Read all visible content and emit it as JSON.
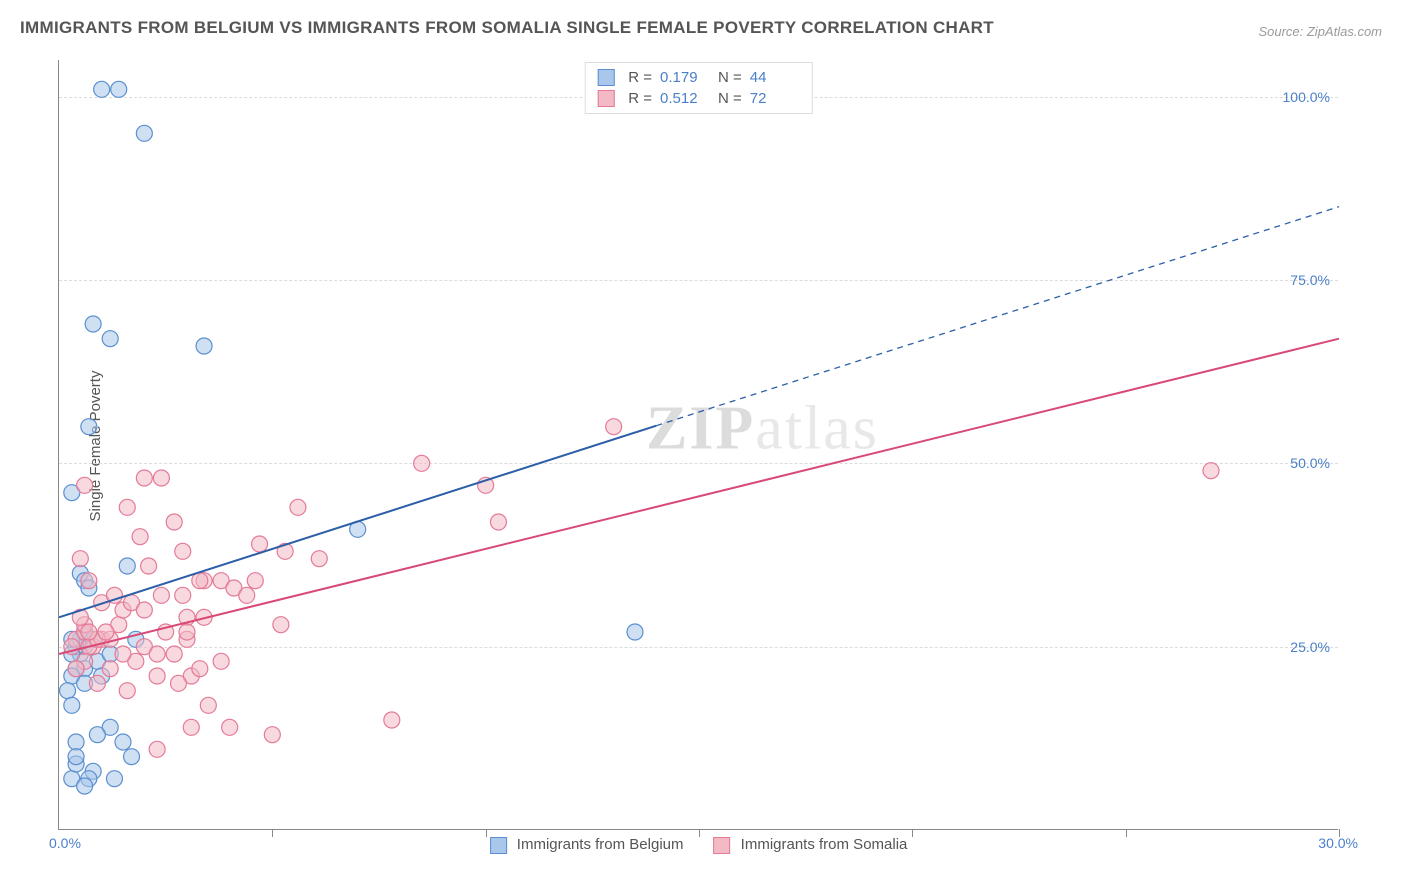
{
  "title": "IMMIGRANTS FROM BELGIUM VS IMMIGRANTS FROM SOMALIA SINGLE FEMALE POVERTY CORRELATION CHART",
  "source": "Source: ZipAtlas.com",
  "ylabel": "Single Female Poverty",
  "watermark_zip": "ZIP",
  "watermark_atlas": "atlas",
  "chart": {
    "type": "scatter+regression",
    "xlim": [
      0,
      30
    ],
    "ylim": [
      0,
      105
    ],
    "x_tick_labels": {
      "min": "0.0%",
      "max": "30.0%"
    },
    "x_tick_positions": [
      0,
      5,
      10,
      15,
      20,
      25,
      30
    ],
    "y_grid": [
      25,
      50,
      75,
      100
    ],
    "y_grid_labels": [
      "25.0%",
      "50.0%",
      "75.0%",
      "100.0%"
    ],
    "grid_color": "#dcdcdc",
    "background_color": "#ffffff",
    "axis_color": "#888888",
    "label_color": "#4a7fc9",
    "marker_radius": 8,
    "marker_opacity": 0.55,
    "line_width": 2
  },
  "series": [
    {
      "id": "belgium",
      "label": "Immigrants from Belgium",
      "color_fill": "#a9c7ea",
      "color_stroke": "#5a8fd1",
      "line_color": "#2d5fa8",
      "R": "0.179",
      "N": "44",
      "reg_start": [
        0,
        29
      ],
      "reg_solid_until_x": 14,
      "reg_end": [
        30,
        85
      ],
      "points": [
        [
          1.0,
          101
        ],
        [
          1.4,
          101
        ],
        [
          2.0,
          95
        ],
        [
          0.8,
          69
        ],
        [
          1.2,
          67
        ],
        [
          3.4,
          66
        ],
        [
          0.7,
          55
        ],
        [
          0.3,
          46
        ],
        [
          0.5,
          35
        ],
        [
          0.6,
          34
        ],
        [
          1.6,
          36
        ],
        [
          0.7,
          33
        ],
        [
          1.8,
          26
        ],
        [
          0.6,
          27
        ],
        [
          0.5,
          24
        ],
        [
          0.6,
          25
        ],
        [
          0.4,
          25
        ],
        [
          0.3,
          24
        ],
        [
          0.6,
          22
        ],
        [
          0.9,
          23
        ],
        [
          0.4,
          22
        ],
        [
          0.3,
          21
        ],
        [
          1.2,
          24
        ],
        [
          0.6,
          20
        ],
        [
          0.2,
          19
        ],
        [
          0.3,
          17
        ],
        [
          1.2,
          14
        ],
        [
          1.5,
          12
        ],
        [
          0.4,
          12
        ],
        [
          0.8,
          8
        ],
        [
          0.3,
          7
        ],
        [
          0.7,
          7
        ],
        [
          1.3,
          7
        ],
        [
          0.6,
          6
        ],
        [
          0.4,
          9
        ],
        [
          7.0,
          41
        ],
        [
          13.5,
          27
        ],
        [
          0.9,
          13
        ],
        [
          1.7,
          10
        ],
        [
          0.4,
          10
        ],
        [
          0.5,
          26
        ],
        [
          0.8,
          26
        ],
        [
          1.0,
          21
        ],
        [
          0.3,
          26
        ]
      ]
    },
    {
      "id": "somalia",
      "label": "Immigrants from Somalia",
      "color_fill": "#f3b9c5",
      "color_stroke": "#e47a97",
      "line_color": "#d94976",
      "R": "0.512",
      "N": "72",
      "reg_start": [
        0,
        24
      ],
      "reg_solid_until_x": 30,
      "reg_end": [
        30,
        67
      ],
      "points": [
        [
          0.4,
          26
        ],
        [
          0.6,
          27
        ],
        [
          0.8,
          25
        ],
        [
          1.0,
          26
        ],
        [
          0.7,
          25
        ],
        [
          0.6,
          28
        ],
        [
          1.2,
          26
        ],
        [
          0.9,
          26
        ],
        [
          0.3,
          25
        ],
        [
          0.7,
          27
        ],
        [
          1.4,
          28
        ],
        [
          1.1,
          27
        ],
        [
          0.5,
          29
        ],
        [
          1.5,
          30
        ],
        [
          1.7,
          31
        ],
        [
          2.0,
          30
        ],
        [
          2.4,
          32
        ],
        [
          2.9,
          32
        ],
        [
          2.0,
          25
        ],
        [
          2.3,
          24
        ],
        [
          2.7,
          24
        ],
        [
          1.8,
          23
        ],
        [
          1.5,
          24
        ],
        [
          1.2,
          22
        ],
        [
          2.3,
          21
        ],
        [
          3.1,
          21
        ],
        [
          3.3,
          22
        ],
        [
          3.8,
          23
        ],
        [
          0.6,
          23
        ],
        [
          2.5,
          27
        ],
        [
          3.0,
          29
        ],
        [
          3.4,
          29
        ],
        [
          0.9,
          20
        ],
        [
          0.4,
          22
        ],
        [
          2.8,
          20
        ],
        [
          3.5,
          17
        ],
        [
          4.0,
          14
        ],
        [
          3.1,
          14
        ],
        [
          2.3,
          11
        ],
        [
          5.0,
          13
        ],
        [
          7.8,
          15
        ],
        [
          1.6,
          19
        ],
        [
          2.7,
          42
        ],
        [
          2.0,
          48
        ],
        [
          2.4,
          48
        ],
        [
          0.6,
          47
        ],
        [
          3.8,
          34
        ],
        [
          3.4,
          34
        ],
        [
          4.6,
          34
        ],
        [
          4.7,
          39
        ],
        [
          5.3,
          38
        ],
        [
          6.1,
          37
        ],
        [
          1.6,
          44
        ],
        [
          4.1,
          33
        ],
        [
          4.4,
          32
        ],
        [
          5.2,
          28
        ],
        [
          0.7,
          34
        ],
        [
          8.5,
          50
        ],
        [
          10.0,
          47
        ],
        [
          10.3,
          42
        ],
        [
          5.6,
          44
        ],
        [
          13.0,
          55
        ],
        [
          27.0,
          49
        ],
        [
          1.0,
          31
        ],
        [
          1.3,
          32
        ],
        [
          3.0,
          26
        ],
        [
          3.0,
          27
        ],
        [
          3.3,
          34
        ],
        [
          2.9,
          38
        ],
        [
          0.5,
          37
        ],
        [
          2.1,
          36
        ],
        [
          1.9,
          40
        ]
      ]
    }
  ],
  "legend_top_labels": {
    "R": "R =",
    "N": "N ="
  }
}
